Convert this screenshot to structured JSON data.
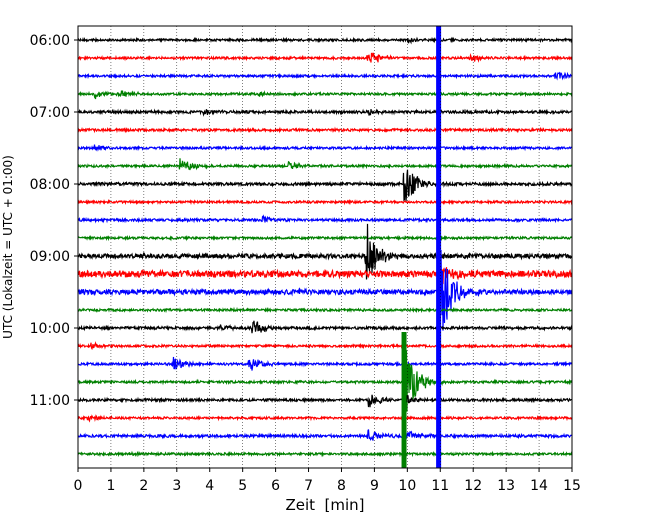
{
  "chart_data": {
    "type": "line",
    "xlabel": "Zeit  [min]",
    "ylabel": "UTC (Lokalzeit = UTC + 01:00)",
    "xlim": [
      0,
      15
    ],
    "x_ticks": [
      "0",
      "1",
      "2",
      "3",
      "4",
      "5",
      "6",
      "7",
      "8",
      "9",
      "10",
      "11",
      "12",
      "13",
      "14",
      "15"
    ],
    "y_ticks": [
      "06:00",
      "07:00",
      "08:00",
      "09:00",
      "10:00",
      "11:00"
    ],
    "grid": "vertical dotted",
    "trace_interval_min": 15,
    "colors": [
      "#000000",
      "#ff0000",
      "#0000ff",
      "#008000"
    ],
    "traces": [
      {
        "start": "06:00",
        "color": "#000000",
        "noise": 1.0,
        "events": [
          {
            "t": 10.0,
            "amp": 3
          }
        ]
      },
      {
        "start": "06:15",
        "color": "#ff0000",
        "noise": 1.0,
        "events": [
          {
            "t": 8.8,
            "amp": 9
          },
          {
            "t": 11.9,
            "amp": 5
          }
        ]
      },
      {
        "start": "06:30",
        "color": "#0000ff",
        "noise": 1.0,
        "events": [
          {
            "t": 14.5,
            "amp": 5
          }
        ]
      },
      {
        "start": "06:45",
        "color": "#008000",
        "noise": 1.0,
        "events": [
          {
            "t": 0.5,
            "amp": 5
          },
          {
            "t": 1.3,
            "amp": 4
          },
          {
            "t": 5.5,
            "amp": 2
          }
        ]
      },
      {
        "start": "07:00",
        "color": "#000000",
        "noise": 1.2,
        "events": [
          {
            "t": 3.8,
            "amp": 3
          },
          {
            "t": 8.8,
            "amp": 3
          }
        ]
      },
      {
        "start": "07:15",
        "color": "#ff0000",
        "noise": 1.1,
        "events": []
      },
      {
        "start": "07:30",
        "color": "#0000ff",
        "noise": 1.0,
        "events": [
          {
            "t": 0.5,
            "amp": 3
          }
        ]
      },
      {
        "start": "07:45",
        "color": "#008000",
        "noise": 1.0,
        "events": [
          {
            "t": 3.1,
            "amp": 8
          },
          {
            "t": 6.4,
            "amp": 6
          }
        ]
      },
      {
        "start": "08:00",
        "color": "#000000",
        "noise": 1.3,
        "events": [
          {
            "t": 9.9,
            "amp": 24
          }
        ]
      },
      {
        "start": "08:15",
        "color": "#ff0000",
        "noise": 1.0,
        "events": []
      },
      {
        "start": "08:30",
        "color": "#0000ff",
        "noise": 1.1,
        "events": [
          {
            "t": 5.6,
            "amp": 4
          }
        ]
      },
      {
        "start": "08:45",
        "color": "#008000",
        "noise": 1.0,
        "events": []
      },
      {
        "start": "09:00",
        "color": "#000000",
        "noise": 2.0,
        "events": [
          {
            "t": 8.75,
            "amp": 36
          }
        ]
      },
      {
        "start": "09:15",
        "color": "#ff0000",
        "noise": 3.0,
        "events": [
          {
            "t": 11.0,
            "amp": 12
          }
        ]
      },
      {
        "start": "09:30",
        "color": "#0000ff",
        "noise": 2.2,
        "events": [
          {
            "t": 10.95,
            "amp": 60
          }
        ]
      },
      {
        "start": "09:45",
        "color": "#008000",
        "noise": 1.0,
        "events": []
      },
      {
        "start": "10:00",
        "color": "#000000",
        "noise": 1.2,
        "events": [
          {
            "t": 4.3,
            "amp": 3
          },
          {
            "t": 5.3,
            "amp": 9
          }
        ]
      },
      {
        "start": "10:15",
        "color": "#ff0000",
        "noise": 1.0,
        "events": [
          {
            "t": 0.4,
            "amp": 3
          }
        ]
      },
      {
        "start": "10:30",
        "color": "#0000ff",
        "noise": 1.0,
        "events": [
          {
            "t": 2.9,
            "amp": 7
          },
          {
            "t": 5.2,
            "amp": 8
          }
        ]
      },
      {
        "start": "10:45",
        "color": "#008000",
        "noise": 1.0,
        "events": [
          {
            "t": 9.9,
            "amp": 44
          }
        ]
      },
      {
        "start": "11:00",
        "color": "#000000",
        "noise": 1.1,
        "events": [
          {
            "t": 8.8,
            "amp": 8
          },
          {
            "t": 9.9,
            "amp": 6
          }
        ]
      },
      {
        "start": "11:15",
        "color": "#ff0000",
        "noise": 1.0,
        "events": [
          {
            "t": 0.3,
            "amp": 3
          }
        ]
      },
      {
        "start": "11:30",
        "color": "#0000ff",
        "noise": 1.2,
        "events": [
          {
            "t": 8.8,
            "amp": 7
          },
          {
            "t": 10.0,
            "amp": 6
          }
        ]
      },
      {
        "start": "11:45",
        "color": "#008000",
        "noise": 1.0,
        "events": [
          {
            "t": 1.5,
            "amp": 2
          }
        ]
      }
    ],
    "saturated_bands": [
      {
        "t": 10.95,
        "color": "#0000ff",
        "from": "06:00",
        "to": "11:45"
      },
      {
        "t": 9.9,
        "color": "#008000",
        "from": "10:15",
        "to": "11:45"
      }
    ]
  }
}
